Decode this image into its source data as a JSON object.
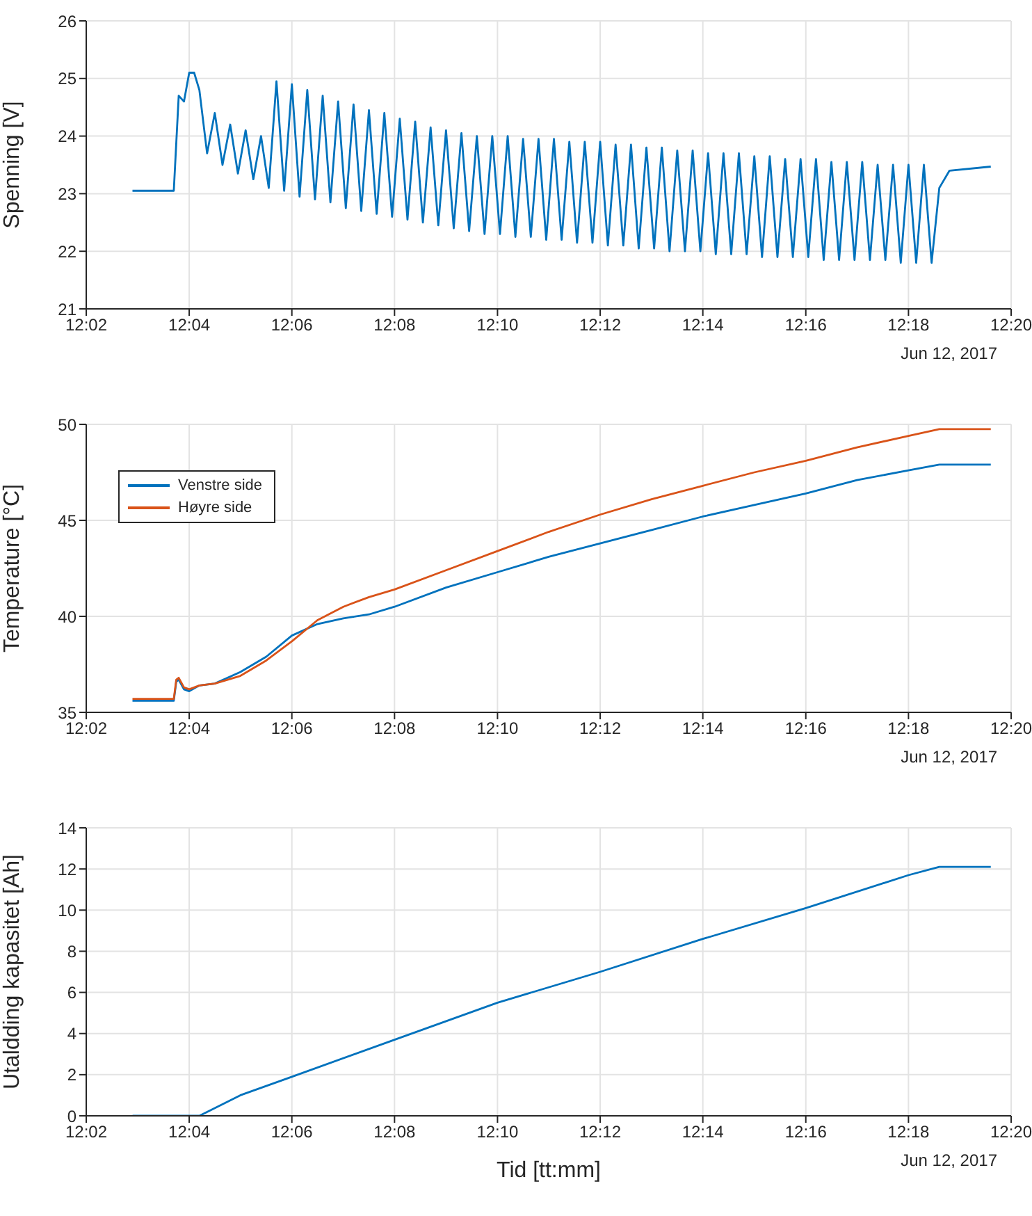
{
  "chart_data": [
    {
      "type": "line",
      "ylabel": "Spenning [V]",
      "xlim": [
        12.0333,
        12.3333
      ],
      "ylim": [
        21,
        26
      ],
      "yticks": [
        21,
        22,
        23,
        24,
        25,
        26
      ],
      "xticks": [
        {
          "value": 12.0333,
          "label": "12:02"
        },
        {
          "value": 12.0667,
          "label": "12:04"
        },
        {
          "value": 12.1,
          "label": "12:06"
        },
        {
          "value": 12.1333,
          "label": "12:08"
        },
        {
          "value": 12.1667,
          "label": "12:10"
        },
        {
          "value": 12.2,
          "label": "12:12"
        },
        {
          "value": 12.2333,
          "label": "12:14"
        },
        {
          "value": 12.2667,
          "label": "12:16"
        },
        {
          "value": 12.3,
          "label": "12:18"
        },
        {
          "value": 12.3333,
          "label": "12:20"
        }
      ],
      "grid": true,
      "annotations": [
        "Jun 12, 2017"
      ],
      "series": [
        {
          "color": "#0072bd",
          "x": [
            12.0483,
            12.0617,
            12.0633,
            12.065,
            12.0667,
            12.0683,
            12.07,
            12.0725,
            12.075,
            12.0775,
            12.08,
            12.0825,
            12.085,
            12.0875,
            12.09,
            12.0925,
            12.095,
            12.0975,
            12.1,
            12.1025,
            12.105,
            12.1075,
            12.11,
            12.1125,
            12.115,
            12.1175,
            12.12,
            12.1225,
            12.125,
            12.1275,
            12.13,
            12.1325,
            12.135,
            12.1375,
            12.14,
            12.1425,
            12.145,
            12.1475,
            12.15,
            12.1525,
            12.155,
            12.1575,
            12.16,
            12.1625,
            12.165,
            12.1675,
            12.17,
            12.1725,
            12.175,
            12.1775,
            12.18,
            12.1825,
            12.185,
            12.1875,
            12.19,
            12.1925,
            12.195,
            12.1975,
            12.2,
            12.2025,
            12.205,
            12.2075,
            12.21,
            12.2125,
            12.215,
            12.2175,
            12.22,
            12.2225,
            12.225,
            12.2275,
            12.23,
            12.2325,
            12.235,
            12.2375,
            12.24,
            12.2425,
            12.245,
            12.2475,
            12.25,
            12.2525,
            12.255,
            12.2575,
            12.26,
            12.2625,
            12.265,
            12.2675,
            12.27,
            12.2725,
            12.275,
            12.2775,
            12.28,
            12.2825,
            12.285,
            12.2875,
            12.29,
            12.2925,
            12.295,
            12.2975,
            12.3,
            12.3025,
            12.305,
            12.3075,
            12.31,
            12.3133,
            12.3267
          ],
          "values": [
            23.05,
            23.05,
            24.7,
            24.6,
            25.1,
            25.1,
            24.8,
            23.7,
            24.4,
            23.5,
            24.2,
            23.35,
            24.1,
            23.25,
            24.0,
            23.1,
            24.95,
            23.05,
            24.9,
            22.95,
            24.8,
            22.9,
            24.7,
            22.85,
            24.6,
            22.75,
            24.55,
            22.7,
            24.45,
            22.65,
            24.4,
            22.6,
            24.3,
            22.55,
            24.25,
            22.5,
            24.15,
            22.45,
            24.1,
            22.4,
            24.05,
            22.35,
            24.0,
            22.3,
            24.0,
            22.3,
            24.0,
            22.25,
            23.95,
            22.25,
            23.95,
            22.2,
            23.95,
            22.2,
            23.9,
            22.15,
            23.9,
            22.15,
            23.9,
            22.1,
            23.85,
            22.1,
            23.85,
            22.05,
            23.8,
            22.05,
            23.8,
            22.0,
            23.75,
            22.0,
            23.75,
            22.0,
            23.7,
            21.95,
            23.7,
            21.95,
            23.7,
            21.95,
            23.65,
            21.9,
            23.65,
            21.9,
            23.6,
            21.9,
            23.6,
            21.9,
            23.6,
            21.85,
            23.55,
            21.85,
            23.55,
            21.85,
            23.55,
            21.85,
            23.5,
            21.85,
            23.5,
            21.8,
            23.5,
            21.8,
            23.5,
            21.8,
            23.1,
            23.4,
            23.47
          ]
        }
      ]
    },
    {
      "type": "line",
      "ylabel": "Temperature [°C]",
      "xlim": [
        12.0333,
        12.3333
      ],
      "ylim": [
        35,
        50
      ],
      "yticks": [
        35,
        40,
        45,
        50
      ],
      "xticks": [
        {
          "value": 12.0333,
          "label": "12:02"
        },
        {
          "value": 12.0667,
          "label": "12:04"
        },
        {
          "value": 12.1,
          "label": "12:06"
        },
        {
          "value": 12.1333,
          "label": "12:08"
        },
        {
          "value": 12.1667,
          "label": "12:10"
        },
        {
          "value": 12.2,
          "label": "12:12"
        },
        {
          "value": 12.2333,
          "label": "12:14"
        },
        {
          "value": 12.2667,
          "label": "12:16"
        },
        {
          "value": 12.3,
          "label": "12:18"
        },
        {
          "value": 12.3333,
          "label": "12:20"
        }
      ],
      "grid": true,
      "legend": "top left",
      "annotations": [
        "Jun 12, 2017"
      ],
      "series": [
        {
          "name": "Venstre side",
          "color": "#0072bd",
          "x": [
            12.0483,
            12.0617,
            12.0625,
            12.0633,
            12.065,
            12.0667,
            12.07,
            12.075,
            12.0833,
            12.0917,
            12.1,
            12.1083,
            12.1167,
            12.125,
            12.1333,
            12.15,
            12.1667,
            12.1833,
            12.2,
            12.2167,
            12.2333,
            12.25,
            12.2667,
            12.2833,
            12.3,
            12.31,
            12.3267
          ],
          "values": [
            35.6,
            35.6,
            36.6,
            36.7,
            36.2,
            36.1,
            36.4,
            36.5,
            37.1,
            37.9,
            39.0,
            39.6,
            39.9,
            40.1,
            40.5,
            41.5,
            42.3,
            43.1,
            43.8,
            44.5,
            45.2,
            45.8,
            46.4,
            47.1,
            47.6,
            47.9,
            47.9
          ]
        },
        {
          "name": "Høyre side",
          "color": "#d95319",
          "x": [
            12.0483,
            12.0617,
            12.0625,
            12.0633,
            12.065,
            12.0667,
            12.07,
            12.075,
            12.0833,
            12.0917,
            12.1,
            12.1083,
            12.1167,
            12.125,
            12.1333,
            12.15,
            12.1667,
            12.1833,
            12.2,
            12.2167,
            12.2333,
            12.25,
            12.2667,
            12.2833,
            12.3,
            12.31,
            12.3267
          ],
          "values": [
            35.7,
            35.7,
            36.7,
            36.8,
            36.3,
            36.2,
            36.4,
            36.5,
            36.9,
            37.7,
            38.7,
            39.8,
            40.5,
            41.0,
            41.4,
            42.4,
            43.4,
            44.4,
            45.3,
            46.1,
            46.8,
            47.5,
            48.1,
            48.8,
            49.4,
            49.75,
            49.75
          ]
        }
      ]
    },
    {
      "type": "line",
      "ylabel": "Utaldding kapasitet [Ah]",
      "xlabel": "Tid [tt:mm]",
      "xlim": [
        12.0333,
        12.3333
      ],
      "ylim": [
        0,
        14
      ],
      "yticks": [
        0,
        2,
        4,
        6,
        8,
        10,
        12,
        14
      ],
      "xticks": [
        {
          "value": 12.0333,
          "label": "12:02"
        },
        {
          "value": 12.0667,
          "label": "12:04"
        },
        {
          "value": 12.1,
          "label": "12:06"
        },
        {
          "value": 12.1333,
          "label": "12:08"
        },
        {
          "value": 12.1667,
          "label": "12:10"
        },
        {
          "value": 12.2,
          "label": "12:12"
        },
        {
          "value": 12.2333,
          "label": "12:14"
        },
        {
          "value": 12.2667,
          "label": "12:16"
        },
        {
          "value": 12.3,
          "label": "12:18"
        },
        {
          "value": 12.3333,
          "label": "12:20"
        }
      ],
      "grid": true,
      "annotations": [
        "Jun 12, 2017"
      ],
      "series": [
        {
          "color": "#0072bd",
          "x": [
            12.0483,
            12.07,
            12.0833,
            12.1,
            12.1333,
            12.1667,
            12.2,
            12.2333,
            12.2667,
            12.3,
            12.31,
            12.3267
          ],
          "values": [
            0,
            0,
            1.0,
            1.9,
            3.7,
            5.5,
            7.0,
            8.6,
            10.1,
            11.7,
            12.1,
            12.1
          ]
        }
      ]
    }
  ]
}
